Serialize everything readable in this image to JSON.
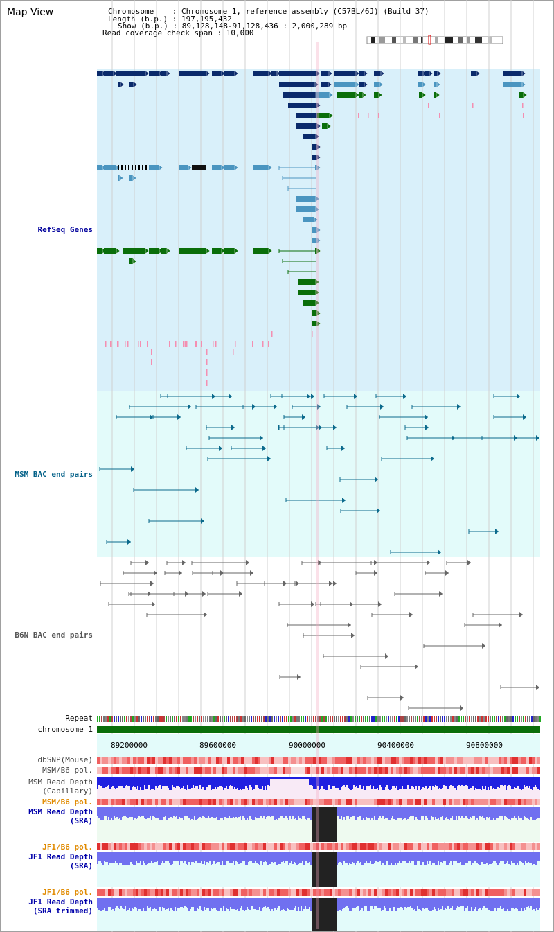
{
  "app": {
    "title": "Map View"
  },
  "info": {
    "chromosome": "Chromosome    : Chromosome 1, reference assembly (C57BL/6J) (Build 37)",
    "length": "Length (b.p.) : 197,195,432",
    "show": "Show (b.p.) : 89,128,148-91,128,436 : 2,000,289 bp",
    "span": "Read coverage check span : 10,000"
  },
  "tracks": {
    "refseq": "RefSeq Genes",
    "msm_bac": "MSM BAC end pairs",
    "b6n_bac": "B6N BAC end pairs",
    "repeat": "Repeat",
    "chromosome": "chromosome 1",
    "dbsnp": "dbSNP(Mouse)",
    "msm_b6_pol_1": "MSM/B6 pol.",
    "msm_depth_cap_1": "MSM Read Depth",
    "msm_depth_cap_2": "(Capillary)",
    "msm_b6_pol_2": "MSM/B6 pol.",
    "msm_depth_sra_1": "MSM Read Depth",
    "msm_depth_sra_2": "(SRA)",
    "jf1_b6_pol_1": "JF1/B6 pol.",
    "jf1_depth_sra_1": "JF1 Read Depth",
    "jf1_depth_sra_2": "(SRA)",
    "jf1_b6_pol_2": "JF1/B6 pol.",
    "jf1_depth_trim_1": "JF1 Read Depth",
    "jf1_depth_trim_2": "(SRA trimmed)"
  },
  "axis": {
    "ticks": [
      "89200000",
      "89600000",
      "90000000",
      "90400000",
      "90800000"
    ]
  },
  "colors": {
    "gene_navy": "#0a2a6b",
    "gene_light": "#4a95c0",
    "gene_green": "#0a6e0a",
    "msm_line": "#0b6a8c",
    "b6n_line": "#666666",
    "chromosome": "#0a6e0a",
    "depth_blue": "#2020e0",
    "depth_sra": "#7070f0",
    "pol_red": "#f08080"
  }
}
